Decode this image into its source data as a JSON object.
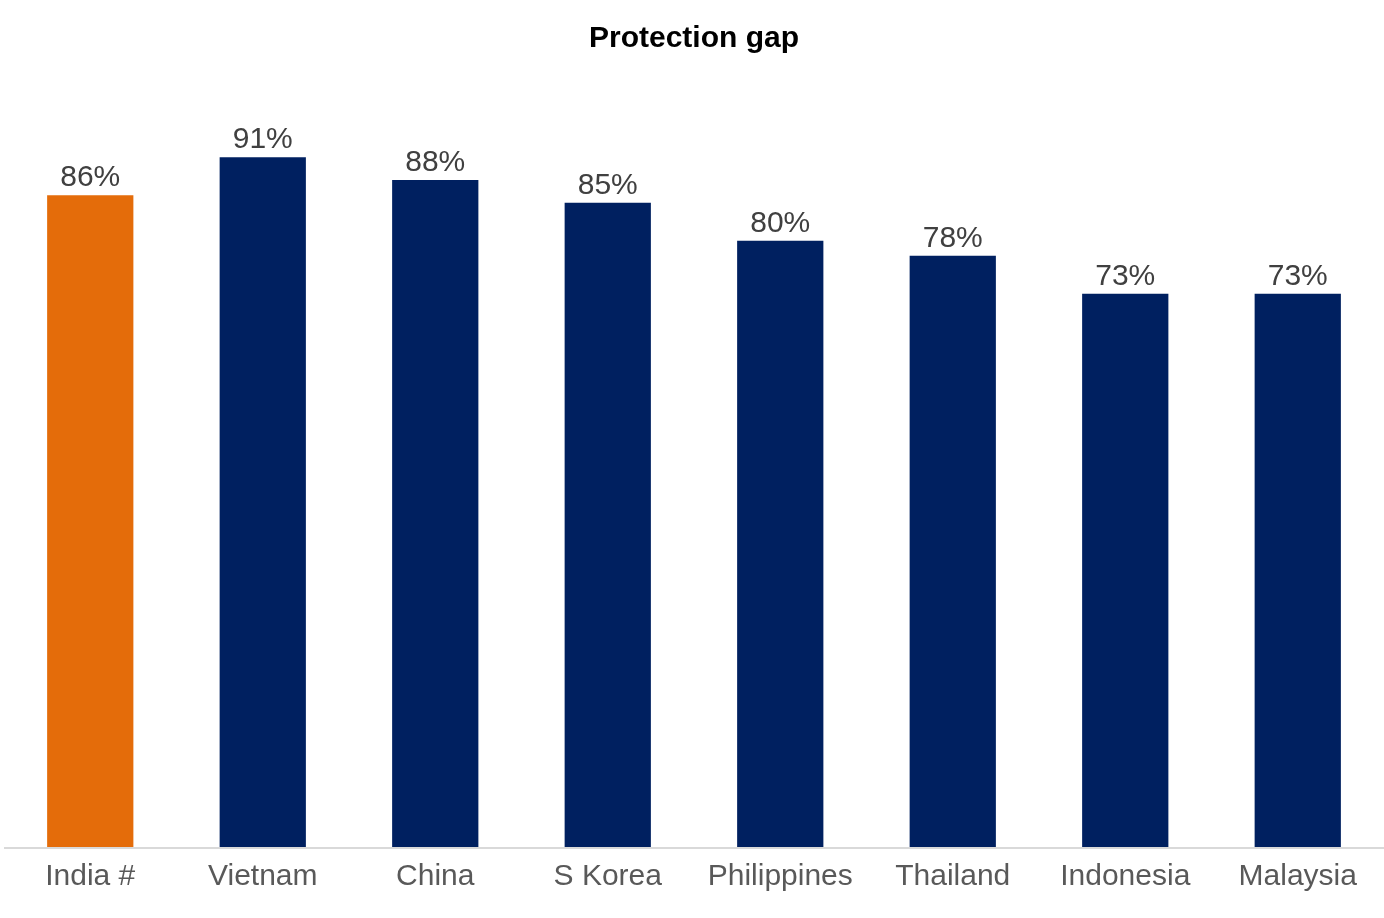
{
  "chart_data": {
    "type": "bar",
    "title": "Protection gap",
    "categories": [
      "India #",
      "Vietnam",
      "China",
      "S Korea",
      "Philippines",
      "Thailand",
      "Indonesia",
      "Malaysia"
    ],
    "values": [
      86,
      91,
      88,
      85,
      80,
      78,
      73,
      73
    ],
    "colors": [
      "#e46c0a",
      "#002060",
      "#002060",
      "#002060",
      "#002060",
      "#002060",
      "#002060",
      "#002060"
    ],
    "value_labels": [
      "86%",
      "91%",
      "88%",
      "85%",
      "80%",
      "78%",
      "73%",
      "73%"
    ],
    "grid": false
  }
}
